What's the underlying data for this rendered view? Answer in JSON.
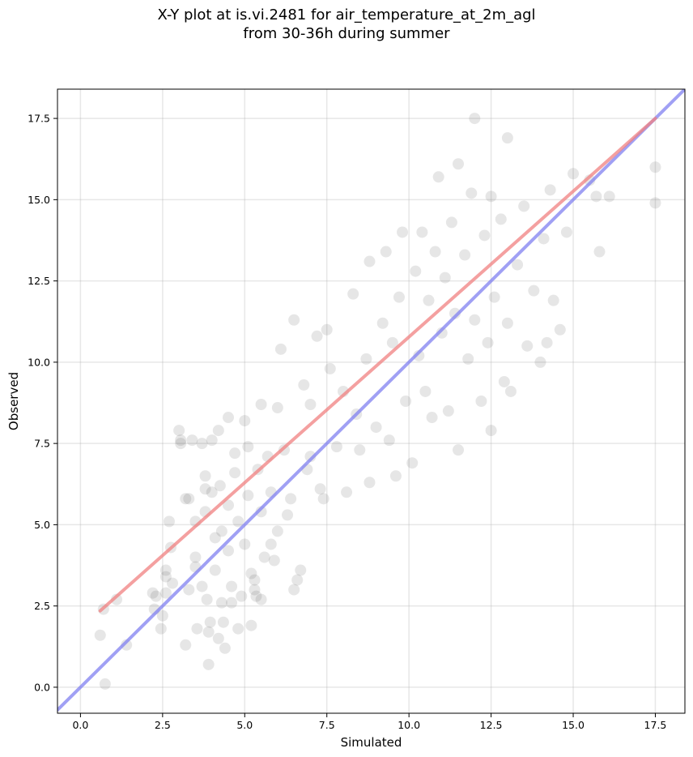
{
  "chart_data": {
    "type": "scatter",
    "title_line1": "X-Y plot at is.vi.2481 for air_temperature_at_2m_agl",
    "title_line2": "from 30-36h during summer",
    "xlabel": "Simulated",
    "ylabel": "Observed",
    "xlim": [
      -0.7,
      18.4
    ],
    "ylim": [
      -0.8,
      18.4
    ],
    "x_ticks": [
      0.0,
      2.5,
      5.0,
      7.5,
      10.0,
      12.5,
      15.0,
      17.5
    ],
    "y_ticks": [
      0.0,
      2.5,
      5.0,
      7.5,
      10.0,
      12.5,
      15.0,
      17.5
    ],
    "x_tick_labels": [
      "0.0",
      "2.5",
      "5.0",
      "7.5",
      "10.0",
      "12.5",
      "15.0",
      "17.5"
    ],
    "y_tick_labels": [
      "0.0",
      "2.5",
      "5.0",
      "7.5",
      "10.0",
      "12.5",
      "15.0",
      "17.5"
    ],
    "grid": true,
    "point_color": "#404040",
    "fit_line": {
      "color": "#f08080",
      "x": [
        0.6,
        17.5
      ],
      "y": [
        2.35,
        17.5
      ]
    },
    "identity_line": {
      "color": "#8080f0",
      "x": [
        -0.7,
        18.4
      ],
      "y": [
        -0.7,
        18.4
      ]
    },
    "points": [
      [
        0.6,
        1.6
      ],
      [
        0.7,
        2.4
      ],
      [
        0.75,
        0.1
      ],
      [
        1.1,
        2.7
      ],
      [
        1.4,
        1.3
      ],
      [
        2.2,
        2.9
      ],
      [
        2.25,
        2.4
      ],
      [
        2.3,
        2.8
      ],
      [
        2.45,
        1.8
      ],
      [
        2.5,
        2.2
      ],
      [
        2.6,
        2.9
      ],
      [
        2.6,
        3.4
      ],
      [
        2.6,
        3.6
      ],
      [
        2.7,
        5.1
      ],
      [
        2.75,
        4.3
      ],
      [
        2.8,
        3.2
      ],
      [
        3.0,
        7.9
      ],
      [
        3.05,
        7.6
      ],
      [
        3.05,
        7.5
      ],
      [
        3.2,
        5.8
      ],
      [
        3.2,
        1.3
      ],
      [
        3.3,
        5.8
      ],
      [
        3.3,
        3.0
      ],
      [
        3.4,
        7.6
      ],
      [
        3.5,
        3.7
      ],
      [
        3.5,
        5.1
      ],
      [
        3.5,
        4.0
      ],
      [
        3.55,
        1.8
      ],
      [
        3.7,
        7.5
      ],
      [
        3.7,
        3.1
      ],
      [
        3.8,
        6.5
      ],
      [
        3.8,
        6.1
      ],
      [
        3.8,
        5.4
      ],
      [
        3.85,
        2.7
      ],
      [
        3.9,
        1.7
      ],
      [
        3.9,
        0.7
      ],
      [
        3.95,
        2.0
      ],
      [
        4.0,
        7.6
      ],
      [
        4.0,
        6.0
      ],
      [
        4.1,
        4.6
      ],
      [
        4.1,
        3.6
      ],
      [
        4.2,
        1.5
      ],
      [
        4.2,
        7.9
      ],
      [
        4.25,
        6.2
      ],
      [
        4.3,
        4.8
      ],
      [
        4.3,
        2.6
      ],
      [
        4.35,
        2.0
      ],
      [
        4.4,
        1.2
      ],
      [
        4.5,
        8.3
      ],
      [
        4.5,
        4.2
      ],
      [
        4.5,
        5.6
      ],
      [
        4.6,
        3.1
      ],
      [
        4.6,
        2.6
      ],
      [
        4.7,
        6.6
      ],
      [
        4.7,
        7.2
      ],
      [
        4.8,
        5.1
      ],
      [
        4.8,
        1.8
      ],
      [
        4.9,
        2.8
      ],
      [
        5.0,
        8.2
      ],
      [
        5.0,
        4.4
      ],
      [
        5.1,
        7.4
      ],
      [
        5.1,
        5.9
      ],
      [
        5.2,
        3.5
      ],
      [
        5.2,
        1.9
      ],
      [
        5.3,
        3.0
      ],
      [
        5.3,
        3.3
      ],
      [
        5.35,
        2.8
      ],
      [
        5.4,
        6.7
      ],
      [
        5.5,
        2.7
      ],
      [
        5.5,
        8.7
      ],
      [
        5.5,
        5.4
      ],
      [
        5.6,
        4.0
      ],
      [
        5.7,
        7.1
      ],
      [
        5.8,
        6.0
      ],
      [
        5.8,
        4.4
      ],
      [
        5.9,
        3.9
      ],
      [
        6.0,
        8.6
      ],
      [
        6.0,
        4.8
      ],
      [
        6.1,
        10.4
      ],
      [
        6.2,
        7.3
      ],
      [
        6.3,
        5.3
      ],
      [
        6.4,
        5.8
      ],
      [
        6.5,
        11.3
      ],
      [
        6.5,
        3.0
      ],
      [
        6.6,
        3.3
      ],
      [
        6.7,
        3.6
      ],
      [
        6.8,
        9.3
      ],
      [
        6.9,
        6.7
      ],
      [
        7.0,
        7.1
      ],
      [
        7.0,
        8.7
      ],
      [
        7.2,
        10.8
      ],
      [
        7.3,
        6.1
      ],
      [
        7.4,
        5.8
      ],
      [
        7.5,
        11.0
      ],
      [
        7.6,
        9.8
      ],
      [
        7.8,
        7.4
      ],
      [
        8.0,
        9.1
      ],
      [
        8.1,
        6.0
      ],
      [
        8.3,
        12.1
      ],
      [
        8.4,
        8.4
      ],
      [
        8.5,
        7.3
      ],
      [
        8.7,
        10.1
      ],
      [
        8.8,
        6.3
      ],
      [
        8.8,
        13.1
      ],
      [
        9.0,
        8.0
      ],
      [
        9.2,
        11.2
      ],
      [
        9.3,
        13.4
      ],
      [
        9.4,
        7.6
      ],
      [
        9.5,
        10.6
      ],
      [
        9.6,
        6.5
      ],
      [
        9.7,
        12.0
      ],
      [
        9.8,
        14.0
      ],
      [
        9.9,
        8.8
      ],
      [
        10.1,
        6.9
      ],
      [
        10.2,
        12.8
      ],
      [
        10.3,
        10.2
      ],
      [
        10.4,
        14.0
      ],
      [
        10.5,
        9.1
      ],
      [
        10.6,
        11.9
      ],
      [
        10.7,
        8.3
      ],
      [
        10.8,
        13.4
      ],
      [
        10.9,
        15.7
      ],
      [
        11.0,
        10.9
      ],
      [
        11.1,
        12.6
      ],
      [
        11.2,
        8.5
      ],
      [
        11.3,
        14.3
      ],
      [
        11.4,
        11.5
      ],
      [
        11.5,
        7.3
      ],
      [
        11.5,
        16.1
      ],
      [
        11.7,
        13.3
      ],
      [
        11.8,
        10.1
      ],
      [
        11.9,
        15.2
      ],
      [
        12.0,
        17.5
      ],
      [
        12.0,
        11.3
      ],
      [
        12.2,
        8.8
      ],
      [
        12.3,
        13.9
      ],
      [
        12.4,
        10.6
      ],
      [
        12.5,
        7.9
      ],
      [
        12.5,
        15.1
      ],
      [
        12.6,
        12.0
      ],
      [
        12.8,
        14.4
      ],
      [
        12.9,
        9.4
      ],
      [
        13.0,
        16.9
      ],
      [
        13.0,
        11.2
      ],
      [
        13.1,
        9.1
      ],
      [
        13.3,
        13.0
      ],
      [
        13.5,
        14.8
      ],
      [
        13.6,
        10.5
      ],
      [
        13.8,
        12.2
      ],
      [
        14.0,
        10.0
      ],
      [
        14.1,
        13.8
      ],
      [
        14.2,
        10.6
      ],
      [
        14.3,
        15.3
      ],
      [
        14.4,
        11.9
      ],
      [
        14.6,
        11.0
      ],
      [
        14.8,
        14.0
      ],
      [
        15.0,
        15.8
      ],
      [
        15.5,
        15.6
      ],
      [
        15.7,
        15.1
      ],
      [
        15.8,
        13.4
      ],
      [
        16.1,
        15.1
      ],
      [
        17.5,
        14.9
      ],
      [
        17.5,
        16.0
      ]
    ]
  }
}
